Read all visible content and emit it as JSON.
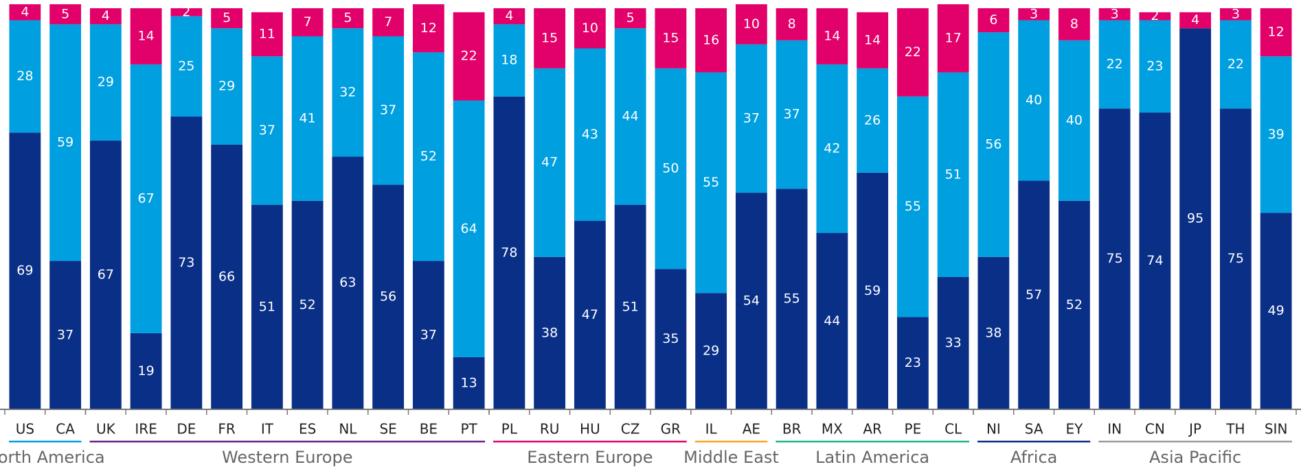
{
  "chart_data": {
    "type": "stacked_bar",
    "groups": [
      {
        "name": "North America",
        "color": "#009fe3",
        "categories": [
          "US",
          "CA"
        ]
      },
      {
        "name": "Western Europe",
        "color": "#6b1f8f",
        "categories": [
          "UK",
          "IRE",
          "DE",
          "FR",
          "IT",
          "ES",
          "NL",
          "SE",
          "BE",
          "PT"
        ]
      },
      {
        "name": "Eastern Europe",
        "color": "#e3006d",
        "categories": [
          "PL",
          "RU",
          "HU",
          "CZ",
          "GR"
        ]
      },
      {
        "name": "Middle East",
        "color": "#f5a623",
        "categories": [
          "IL",
          "AE"
        ]
      },
      {
        "name": "Latin America",
        "color": "#1fb58c",
        "categories": [
          "BR",
          "MX",
          "AR",
          "PE",
          "CL"
        ]
      },
      {
        "name": "Africa",
        "color": "#0c2c84",
        "categories": [
          "NI",
          "SA",
          "EY"
        ]
      },
      {
        "name": "Asia Pacific",
        "color": "#9a9a9a",
        "categories": [
          "IN",
          "CN",
          "JP",
          "TH",
          "SIN"
        ]
      }
    ],
    "series": [
      {
        "color": "#0a2f87",
        "values": [
          69,
          37,
          67,
          19,
          73,
          66,
          51,
          52,
          63,
          56,
          37,
          13,
          78,
          38,
          47,
          51,
          35,
          29,
          54,
          55,
          44,
          59,
          23,
          33,
          38,
          57,
          52,
          75,
          74,
          95,
          75,
          49
        ]
      },
      {
        "color": "#009fdf",
        "values": [
          28,
          59,
          29,
          67,
          25,
          29,
          37,
          41,
          32,
          37,
          52,
          64,
          18,
          47,
          43,
          44,
          50,
          55,
          37,
          37,
          42,
          26,
          55,
          51,
          56,
          40,
          40,
          22,
          23,
          null,
          22,
          39
        ]
      },
      {
        "color": "#e2006a",
        "values": [
          4,
          5,
          4,
          14,
          2,
          5,
          11,
          7,
          5,
          7,
          12,
          22,
          4,
          15,
          10,
          5,
          15,
          16,
          10,
          8,
          14,
          14,
          22,
          17,
          6,
          3,
          8,
          3,
          2,
          4,
          3,
          12
        ]
      }
    ],
    "ylim": [
      0,
      100
    ]
  }
}
